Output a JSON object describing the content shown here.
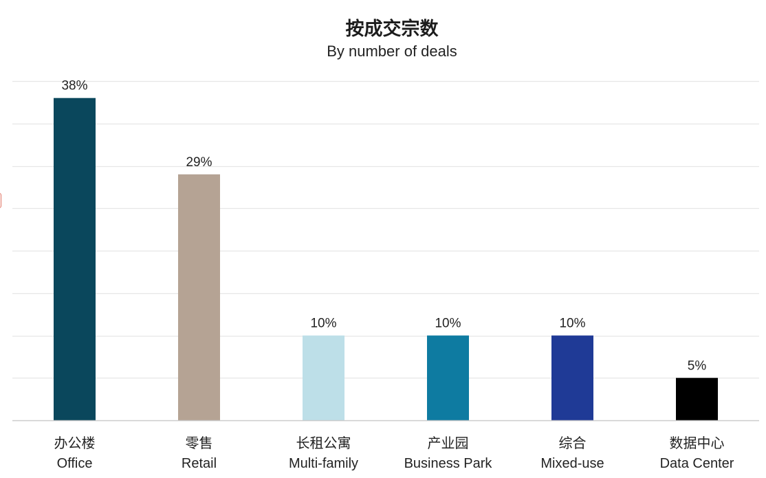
{
  "chart_data": {
    "type": "bar",
    "title": "按成交宗数",
    "subtitle": "By number of deals",
    "categories": [
      {
        "zh": "办公楼",
        "en": "Office"
      },
      {
        "zh": "零售",
        "en": "Retail"
      },
      {
        "zh": "长租公寓",
        "en": "Multi-family"
      },
      {
        "zh": "产业园",
        "en": "Business Park"
      },
      {
        "zh": "综合",
        "en": "Mixed-use"
      },
      {
        "zh": "数据中心",
        "en": "Data Center"
      }
    ],
    "values": [
      38,
      29,
      10,
      10,
      10,
      5
    ],
    "data_labels": [
      "38%",
      "29%",
      "10%",
      "10%",
      "10%",
      "5%"
    ],
    "unit": "%",
    "ylim": [
      0,
      40
    ],
    "grid": true,
    "colors": [
      "#0a475c",
      "#b5a394",
      "#bddfe8",
      "#0e7ba1",
      "#1f3a96",
      "#000000"
    ],
    "gridline_color": "#e6e6e6",
    "axis_color": "#cccccc"
  }
}
